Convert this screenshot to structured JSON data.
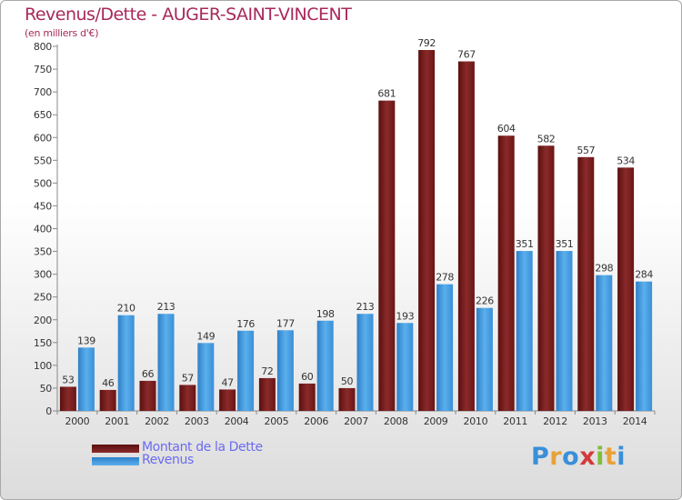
{
  "chart_data": {
    "type": "bar",
    "title": "Revenus/Dette - AUGER-SAINT-VINCENT",
    "subtitle": "(en milliers d'€)",
    "categories": [
      "2000",
      "2001",
      "2002",
      "2003",
      "2004",
      "2005",
      "2006",
      "2007",
      "2008",
      "2009",
      "2010",
      "2011",
      "2012",
      "2013",
      "2014"
    ],
    "series": [
      {
        "name": "Montant de la Dette",
        "color": "#7a1a1a",
        "values": [
          53,
          46,
          66,
          57,
          47,
          72,
          60,
          50,
          681,
          792,
          767,
          604,
          582,
          557,
          534
        ]
      },
      {
        "name": "Revenus",
        "color": "#3d94dc",
        "values": [
          139,
          210,
          213,
          149,
          176,
          177,
          198,
          213,
          193,
          278,
          226,
          351,
          351,
          298,
          284
        ]
      }
    ],
    "ylim": [
      0,
      800
    ],
    "yticks": [
      0,
      50,
      100,
      150,
      200,
      250,
      300,
      350,
      400,
      450,
      500,
      550,
      600,
      650,
      700,
      750,
      800
    ],
    "grid": false,
    "legend": "bottom-left"
  },
  "logo": {
    "letters": [
      "P",
      "r",
      "o",
      "x",
      "i",
      "t",
      "i"
    ],
    "colors": [
      "#3a8fd8",
      "#e8a23a",
      "#3a8fd8",
      "#d43a3a",
      "#7fbf3a",
      "#e8a23a",
      "#3a8fd8"
    ]
  }
}
